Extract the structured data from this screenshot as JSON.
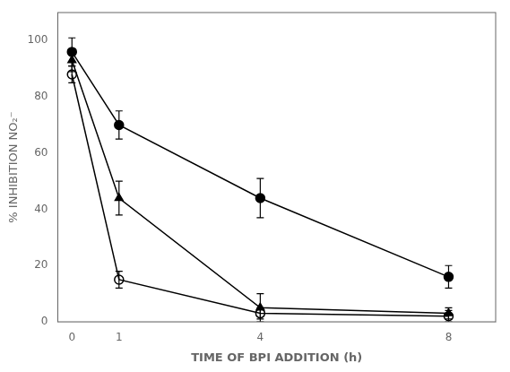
{
  "chart_data": {
    "type": "line",
    "xlabel": "TIME OF BPI ADDITION (h)",
    "ylabel": "% INHIBITION NO₂⁻",
    "x": [
      0,
      1,
      4,
      8
    ],
    "series": [
      {
        "color": "black",
        "marker": "circle",
        "line_style": "solid",
        "values": [
          96,
          70,
          44,
          16
        ],
        "yerr": [
          5,
          5,
          7,
          4
        ]
      },
      {
        "color": "black",
        "marker": "triangle",
        "line_style": "solid",
        "values": [
          93,
          44,
          5,
          3
        ],
        "yerr": [
          4,
          6,
          5,
          2
        ]
      },
      {
        "color": "black",
        "marker": "open_circle",
        "line_style": "solid",
        "values": [
          88,
          15,
          3,
          2
        ],
        "yerr": [
          3,
          3,
          2,
          2
        ]
      }
    ],
    "xlim": [
      -0.3,
      9
    ],
    "ylim": [
      0,
      110
    ],
    "xticks": [
      0,
      1,
      4,
      8
    ],
    "yticks": [
      0,
      20,
      40,
      60,
      80,
      100
    ],
    "grid": false
  }
}
